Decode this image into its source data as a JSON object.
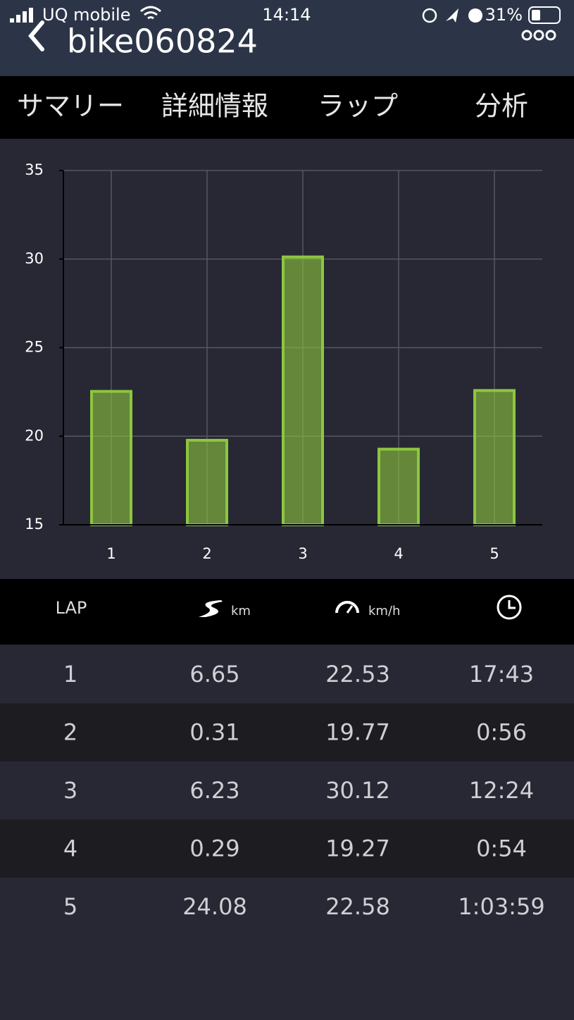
{
  "status_bar": {
    "carrier": "UQ mobile",
    "time": "14:14",
    "battery": "31%"
  },
  "header": {
    "title": "bike060824"
  },
  "tabs": {
    "items": [
      "サマリー",
      "詳細情報",
      "ラップ",
      "分析"
    ],
    "active": 2,
    "active_color": "#8dc63f"
  },
  "chart_data": {
    "type": "bar",
    "categories": [
      "1",
      "2",
      "3",
      "4",
      "5"
    ],
    "values": [
      22.53,
      19.77,
      30.12,
      19.27,
      22.58
    ],
    "color": "#8dc63f",
    "ylim": [
      15,
      35
    ],
    "yticks": [
      15,
      20,
      25,
      30,
      35
    ],
    "grid": true
  },
  "table": {
    "header": {
      "lap": "LAP",
      "distance_unit": "km",
      "speed_unit": "km/h"
    },
    "rows": [
      [
        "1",
        "6.65",
        "22.53",
        "17:43"
      ],
      [
        "2",
        "0.31",
        "19.77",
        "0:56"
      ],
      [
        "3",
        "6.23",
        "30.12",
        "12:24"
      ],
      [
        "4",
        "0.29",
        "19.27",
        "0:54"
      ],
      [
        "5",
        "24.08",
        "22.58",
        "1:03:59"
      ]
    ],
    "speed_colors": {
      "max": "#e8141c",
      "min": "#86c440"
    }
  }
}
